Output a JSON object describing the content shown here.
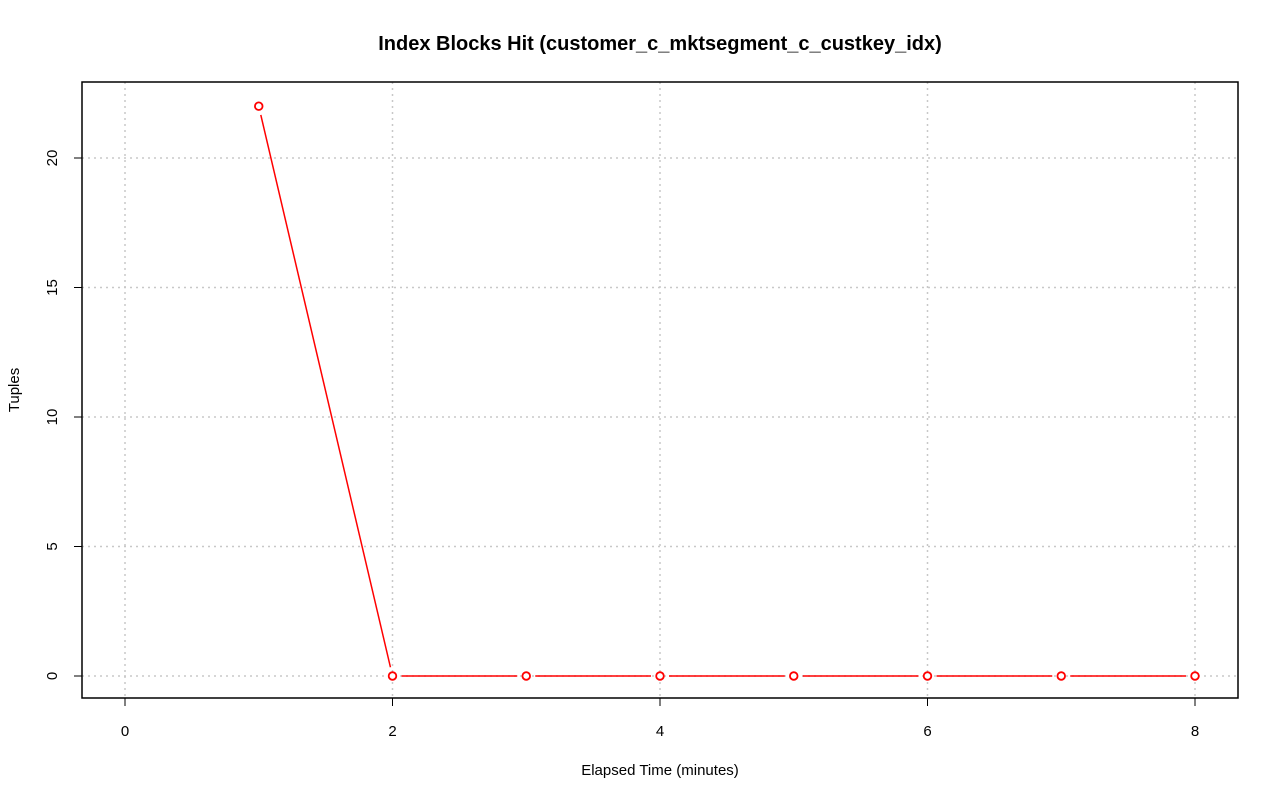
{
  "chart_data": {
    "type": "line",
    "title": "Index Blocks Hit (customer_c_mktsegment_c_custkey_idx)",
    "xlabel": "Elapsed Time (minutes)",
    "ylabel": "Tuples",
    "xlim": [
      0,
      8
    ],
    "ylim": [
      0,
      22
    ],
    "x_ticks": [
      0,
      2,
      4,
      6,
      8
    ],
    "y_ticks": [
      0,
      5,
      10,
      15,
      20
    ],
    "x_tick_labels": [
      "0",
      "2",
      "4",
      "6",
      "8"
    ],
    "y_tick_labels": [
      "0",
      "5",
      "10",
      "15",
      "20"
    ],
    "grid": true,
    "legend": "none",
    "series": [
      {
        "x": [
          1,
          2,
          3,
          4,
          5,
          6,
          7,
          8
        ],
        "y": [
          22,
          0,
          0,
          0,
          0,
          0,
          0,
          0
        ],
        "color": "#ff0000",
        "marker": "open-circle"
      }
    ]
  }
}
